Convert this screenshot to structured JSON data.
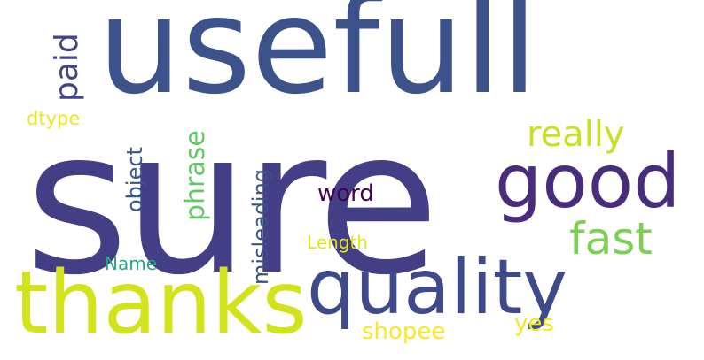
{
  "cloud": {
    "background": "#ffffff",
    "words": [
      {
        "key": "usefull",
        "text": "usefull",
        "color": "#3b528b"
      },
      {
        "key": "sure",
        "text": "sure",
        "color": "#433e85"
      },
      {
        "key": "good",
        "text": "good",
        "color": "#472d7b"
      },
      {
        "key": "thanks",
        "text": "thanks",
        "color": "#d2e21b"
      },
      {
        "key": "quality",
        "text": "quality",
        "color": "#3e4a89"
      },
      {
        "key": "fast",
        "text": "fast",
        "color": "#7ad151"
      },
      {
        "key": "really",
        "text": "really",
        "color": "#c8e020"
      },
      {
        "key": "word",
        "text": "word",
        "color": "#440154"
      },
      {
        "key": "length",
        "text": "Length",
        "color": "#e5e419"
      },
      {
        "key": "name",
        "text": "Name",
        "color": "#22a884"
      },
      {
        "key": "dtype",
        "text": "dtype",
        "color": "#f1e51d"
      },
      {
        "key": "shopee",
        "text": "shopee",
        "color": "#fde725"
      },
      {
        "key": "yes",
        "text": "yes",
        "color": "#f6e620"
      },
      {
        "key": "paid",
        "text": "paid",
        "color": "#414487"
      },
      {
        "key": "object",
        "text": "object",
        "color": "#39568c"
      },
      {
        "key": "phrase",
        "text": "phrase",
        "color": "#5ec962"
      },
      {
        "key": "misleading",
        "text": "misleading",
        "color": "#3b528b"
      }
    ]
  }
}
